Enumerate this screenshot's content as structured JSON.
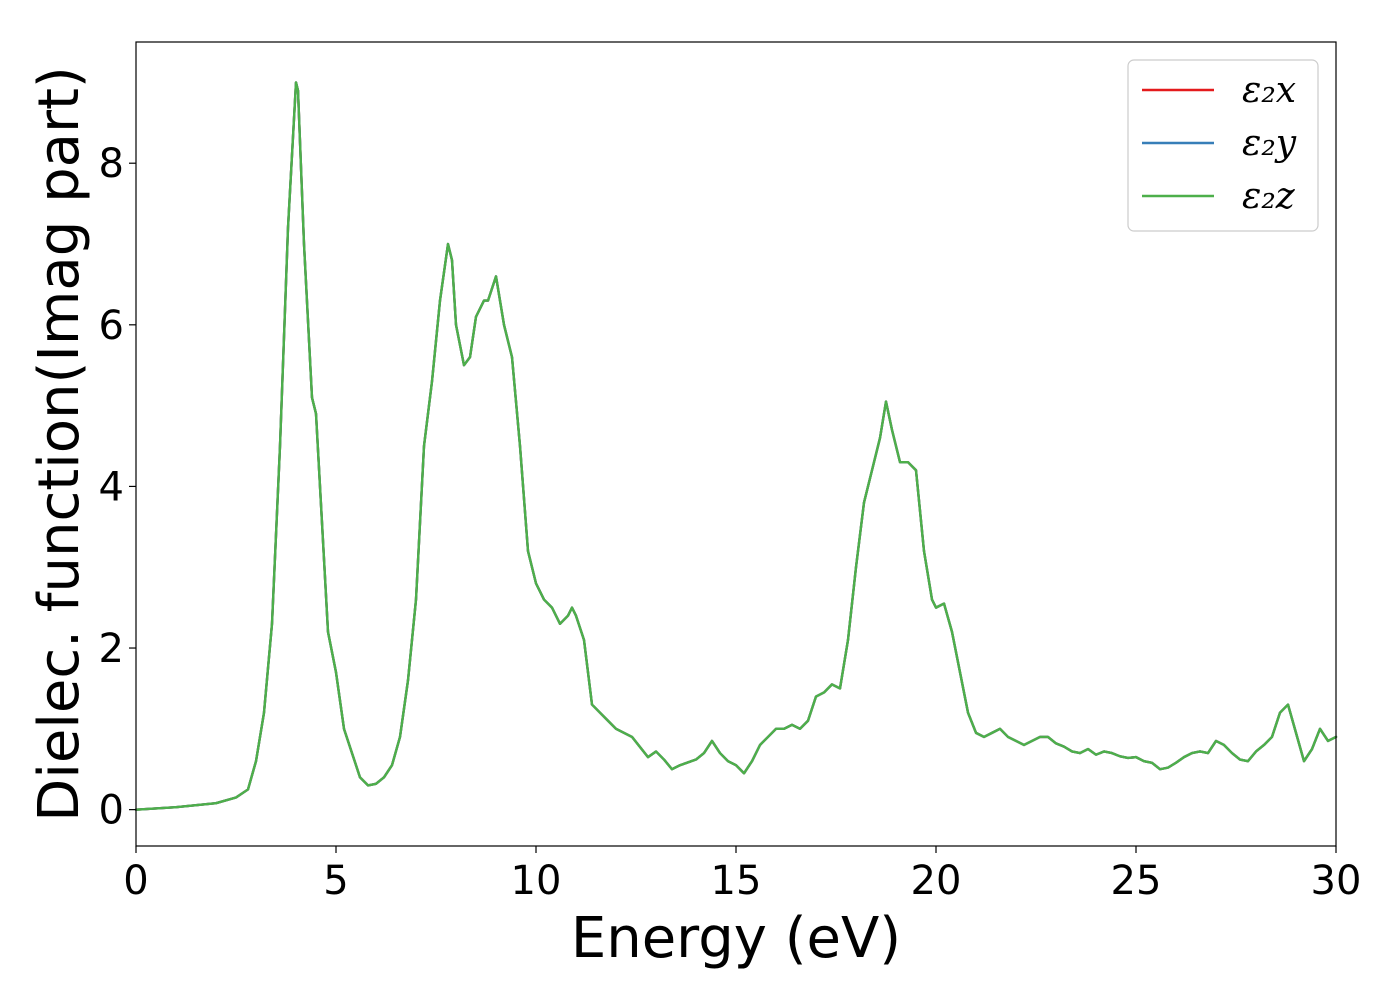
{
  "chart_data": {
    "type": "line",
    "title": "",
    "xlabel": "Energy (eV)",
    "ylabel": "Dielec. function(Imag part)",
    "xlim": [
      0,
      30
    ],
    "ylim": [
      -0.45,
      9.5
    ],
    "xticks": [
      0,
      5,
      10,
      15,
      20,
      25,
      30
    ],
    "yticks": [
      0,
      2,
      4,
      6,
      8
    ],
    "grid": false,
    "legend_position": "top-right",
    "x": [
      0,
      1,
      2,
      2.5,
      2.8,
      3.0,
      3.2,
      3.4,
      3.6,
      3.8,
      4.0,
      4.05,
      4.2,
      4.4,
      4.5,
      4.6,
      4.8,
      5.0,
      5.2,
      5.4,
      5.6,
      5.8,
      6.0,
      6.2,
      6.4,
      6.6,
      6.8,
      7.0,
      7.2,
      7.4,
      7.6,
      7.8,
      7.9,
      8.0,
      8.2,
      8.35,
      8.5,
      8.7,
      8.8,
      9.0,
      9.2,
      9.4,
      9.6,
      9.8,
      10.0,
      10.2,
      10.4,
      10.6,
      10.8,
      10.9,
      11.0,
      11.2,
      11.4,
      11.6,
      11.8,
      12.0,
      12.4,
      12.8,
      13.0,
      13.2,
      13.4,
      13.6,
      14.0,
      14.2,
      14.4,
      14.6,
      14.8,
      15.0,
      15.2,
      15.4,
      15.6,
      15.8,
      16.0,
      16.2,
      16.4,
      16.6,
      16.8,
      17.0,
      17.2,
      17.4,
      17.6,
      17.8,
      18.0,
      18.2,
      18.4,
      18.6,
      18.75,
      18.9,
      19.1,
      19.3,
      19.5,
      19.7,
      19.9,
      20.0,
      20.2,
      20.4,
      20.6,
      20.8,
      21.0,
      21.2,
      21.4,
      21.6,
      21.8,
      22.0,
      22.2,
      22.4,
      22.6,
      22.8,
      23.0,
      23.2,
      23.4,
      23.6,
      23.8,
      24.0,
      24.2,
      24.4,
      24.6,
      24.8,
      25.0,
      25.2,
      25.4,
      25.6,
      25.8,
      26.0,
      26.2,
      26.4,
      26.6,
      26.8,
      27.0,
      27.2,
      27.4,
      27.6,
      27.8,
      28.0,
      28.2,
      28.4,
      28.6,
      28.8,
      29.0,
      29.2,
      29.4,
      29.6,
      29.8,
      30.0
    ],
    "series": [
      {
        "name": "ε₂x",
        "color": "#e41a1c",
        "values": [
          0.0,
          0.03,
          0.08,
          0.15,
          0.25,
          0.6,
          1.2,
          2.3,
          4.5,
          7.2,
          9.0,
          8.9,
          7.0,
          5.1,
          4.9,
          4.0,
          2.2,
          1.7,
          1.0,
          0.7,
          0.4,
          0.3,
          0.32,
          0.4,
          0.55,
          0.9,
          1.6,
          2.6,
          4.5,
          5.3,
          6.3,
          7.0,
          6.8,
          6.0,
          5.5,
          5.6,
          6.1,
          6.3,
          6.3,
          6.6,
          6.0,
          5.6,
          4.5,
          3.2,
          2.8,
          2.6,
          2.5,
          2.3,
          2.4,
          2.5,
          2.4,
          2.1,
          1.3,
          1.2,
          1.1,
          1.0,
          0.9,
          0.65,
          0.72,
          0.62,
          0.5,
          0.55,
          0.62,
          0.7,
          0.85,
          0.7,
          0.6,
          0.55,
          0.45,
          0.6,
          0.8,
          0.9,
          1.0,
          1.0,
          1.05,
          1.0,
          1.1,
          1.4,
          1.45,
          1.55,
          1.5,
          2.1,
          3.0,
          3.8,
          4.2,
          4.6,
          5.05,
          4.7,
          4.3,
          4.3,
          4.2,
          3.2,
          2.6,
          2.5,
          2.55,
          2.2,
          1.7,
          1.2,
          0.95,
          0.9,
          0.95,
          1.0,
          0.9,
          0.85,
          0.8,
          0.85,
          0.9,
          0.9,
          0.82,
          0.78,
          0.72,
          0.7,
          0.75,
          0.68,
          0.72,
          0.7,
          0.66,
          0.64,
          0.65,
          0.6,
          0.58,
          0.5,
          0.52,
          0.58,
          0.65,
          0.7,
          0.72,
          0.7,
          0.85,
          0.8,
          0.7,
          0.62,
          0.6,
          0.72,
          0.8,
          0.9,
          1.2,
          1.3,
          0.95,
          0.6,
          0.75,
          1.0,
          0.85,
          0.9
        ]
      },
      {
        "name": "ε₂y",
        "color": "#377eb8",
        "values": [
          0.0,
          0.03,
          0.08,
          0.15,
          0.25,
          0.6,
          1.2,
          2.3,
          4.5,
          7.2,
          9.0,
          8.9,
          7.0,
          5.1,
          4.9,
          4.0,
          2.2,
          1.7,
          1.0,
          0.7,
          0.4,
          0.3,
          0.32,
          0.4,
          0.55,
          0.9,
          1.6,
          2.6,
          4.5,
          5.3,
          6.3,
          7.0,
          6.8,
          6.0,
          5.5,
          5.6,
          6.1,
          6.3,
          6.3,
          6.6,
          6.0,
          5.6,
          4.5,
          3.2,
          2.8,
          2.6,
          2.5,
          2.3,
          2.4,
          2.5,
          2.4,
          2.1,
          1.3,
          1.2,
          1.1,
          1.0,
          0.9,
          0.65,
          0.72,
          0.62,
          0.5,
          0.55,
          0.62,
          0.7,
          0.85,
          0.7,
          0.6,
          0.55,
          0.45,
          0.6,
          0.8,
          0.9,
          1.0,
          1.0,
          1.05,
          1.0,
          1.1,
          1.4,
          1.45,
          1.55,
          1.5,
          2.1,
          3.0,
          3.8,
          4.2,
          4.6,
          5.05,
          4.7,
          4.3,
          4.3,
          4.2,
          3.2,
          2.6,
          2.5,
          2.55,
          2.2,
          1.7,
          1.2,
          0.95,
          0.9,
          0.95,
          1.0,
          0.9,
          0.85,
          0.8,
          0.85,
          0.9,
          0.9,
          0.82,
          0.78,
          0.72,
          0.7,
          0.75,
          0.68,
          0.72,
          0.7,
          0.66,
          0.64,
          0.65,
          0.6,
          0.58,
          0.5,
          0.52,
          0.58,
          0.65,
          0.7,
          0.72,
          0.7,
          0.85,
          0.8,
          0.7,
          0.62,
          0.6,
          0.72,
          0.8,
          0.9,
          1.2,
          1.3,
          0.95,
          0.6,
          0.75,
          1.0,
          0.85,
          0.9
        ]
      },
      {
        "name": "ε₂z",
        "color": "#4daf4a",
        "values": [
          0.0,
          0.03,
          0.08,
          0.15,
          0.25,
          0.6,
          1.2,
          2.3,
          4.5,
          7.2,
          9.0,
          8.9,
          7.0,
          5.1,
          4.9,
          4.0,
          2.2,
          1.7,
          1.0,
          0.7,
          0.4,
          0.3,
          0.32,
          0.4,
          0.55,
          0.9,
          1.6,
          2.6,
          4.5,
          5.3,
          6.3,
          7.0,
          6.8,
          6.0,
          5.5,
          5.6,
          6.1,
          6.3,
          6.3,
          6.6,
          6.0,
          5.6,
          4.5,
          3.2,
          2.8,
          2.6,
          2.5,
          2.3,
          2.4,
          2.5,
          2.4,
          2.1,
          1.3,
          1.2,
          1.1,
          1.0,
          0.9,
          0.65,
          0.72,
          0.62,
          0.5,
          0.55,
          0.62,
          0.7,
          0.85,
          0.7,
          0.6,
          0.55,
          0.45,
          0.6,
          0.8,
          0.9,
          1.0,
          1.0,
          1.05,
          1.0,
          1.1,
          1.4,
          1.45,
          1.55,
          1.5,
          2.1,
          3.0,
          3.8,
          4.2,
          4.6,
          5.05,
          4.7,
          4.3,
          4.3,
          4.2,
          3.2,
          2.6,
          2.5,
          2.55,
          2.2,
          1.7,
          1.2,
          0.95,
          0.9,
          0.95,
          1.0,
          0.9,
          0.85,
          0.8,
          0.85,
          0.9,
          0.9,
          0.82,
          0.78,
          0.72,
          0.7,
          0.75,
          0.68,
          0.72,
          0.7,
          0.66,
          0.64,
          0.65,
          0.6,
          0.58,
          0.5,
          0.52,
          0.58,
          0.65,
          0.7,
          0.72,
          0.7,
          0.85,
          0.8,
          0.7,
          0.62,
          0.6,
          0.72,
          0.8,
          0.9,
          1.2,
          1.3,
          0.95,
          0.6,
          0.75,
          1.0,
          0.85,
          0.9
        ]
      }
    ]
  }
}
